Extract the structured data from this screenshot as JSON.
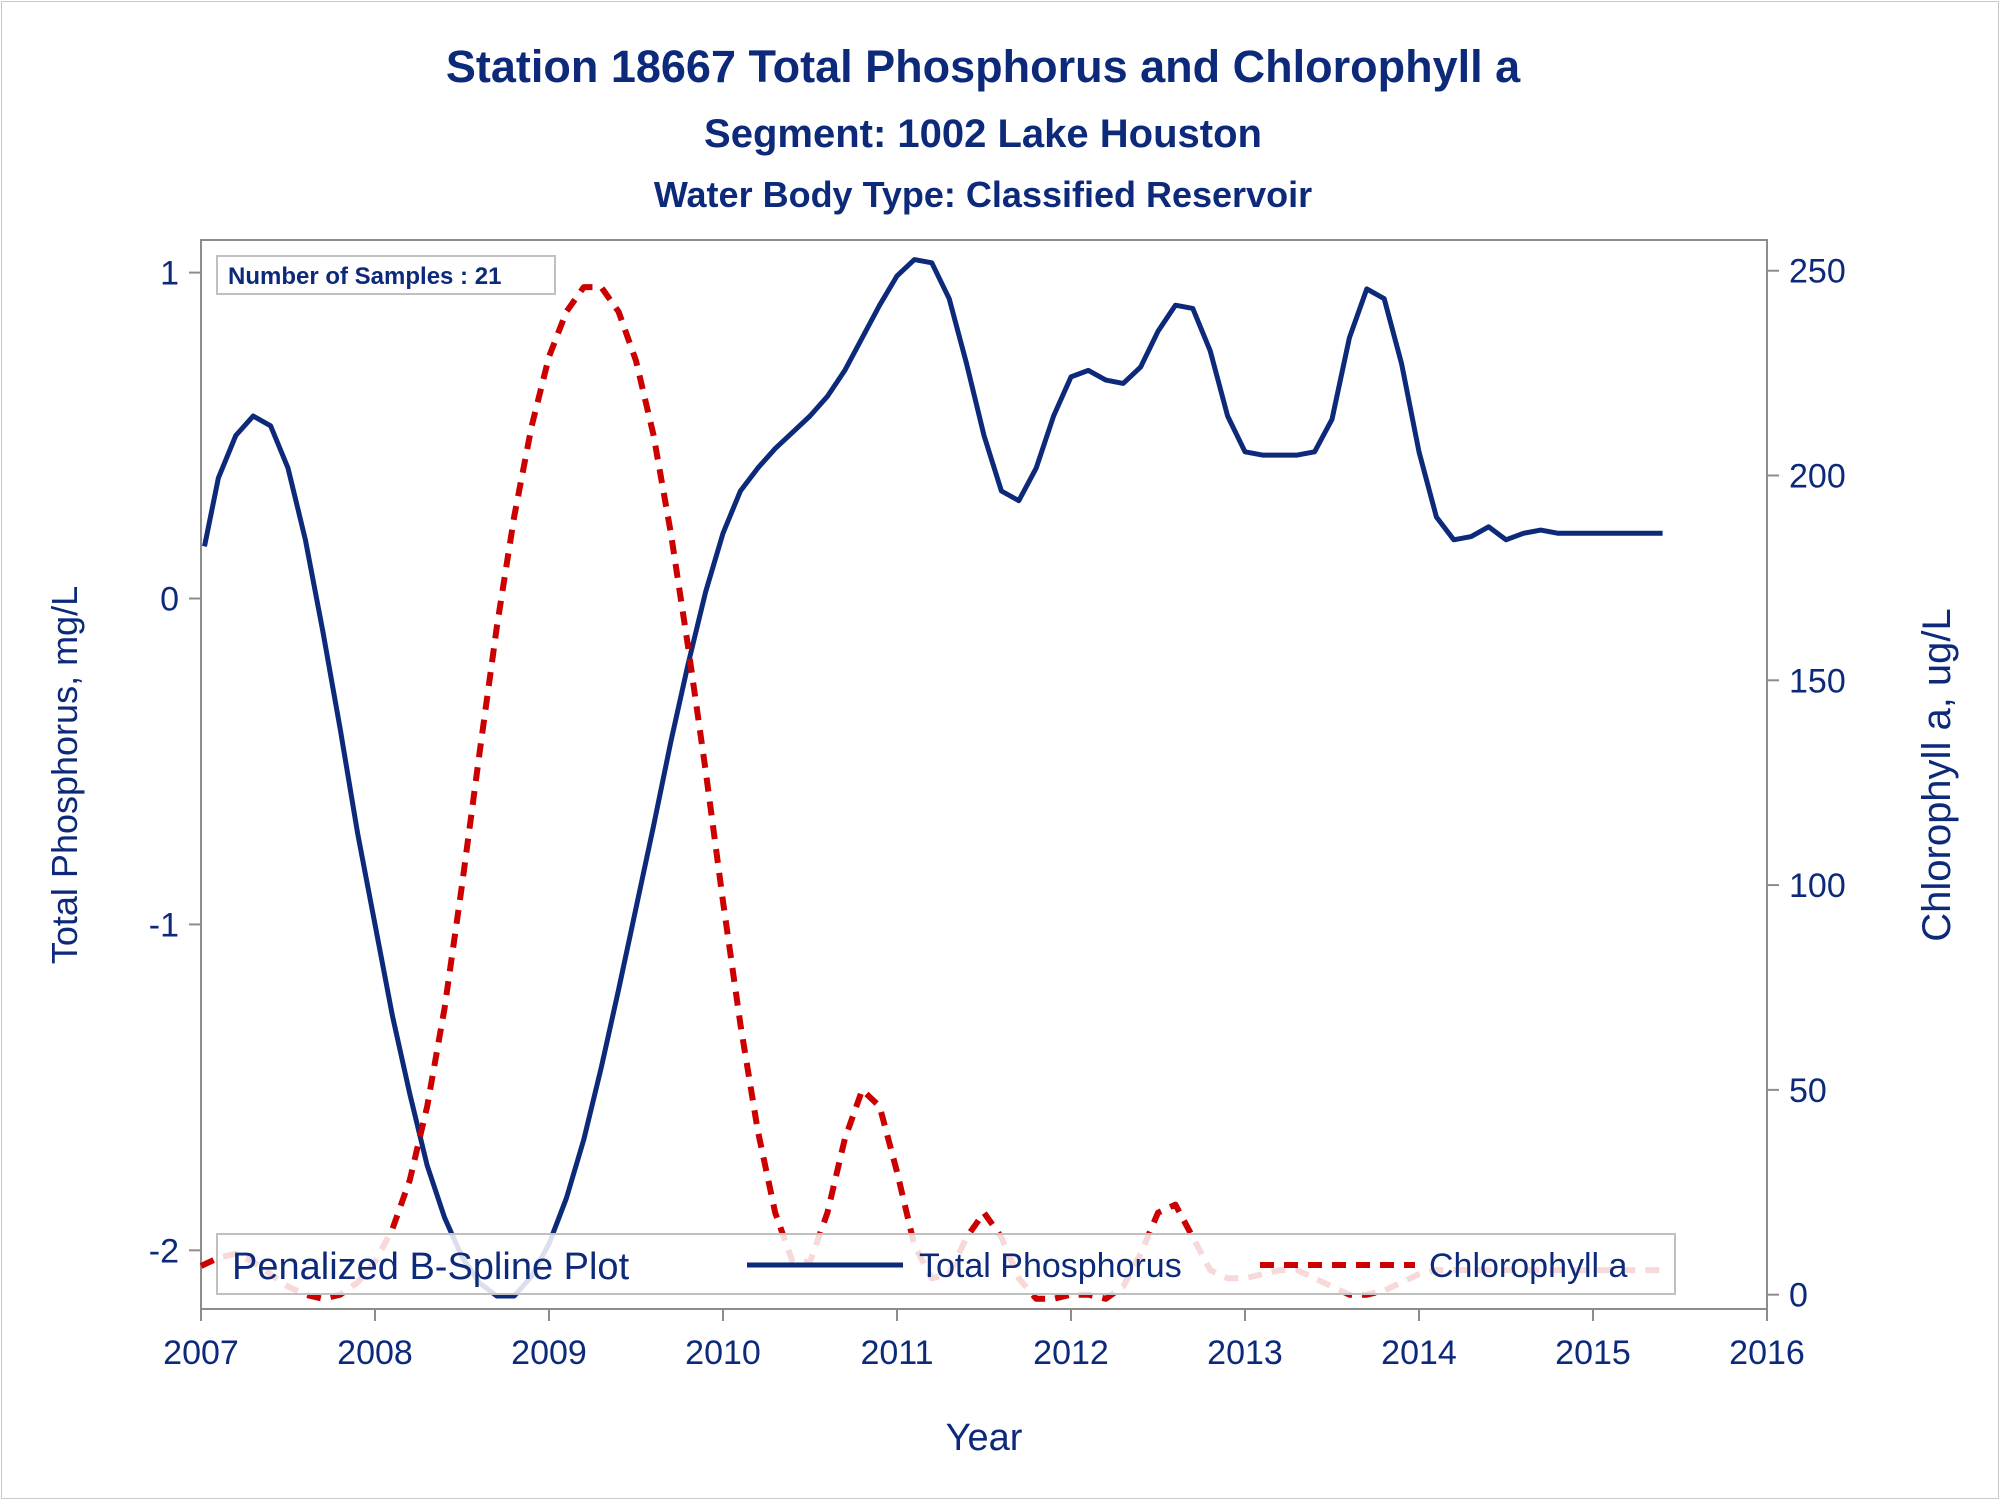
{
  "chart_data": {
    "type": "line",
    "title": "Station 18667  Total Phosphorus and Chlorophyll a",
    "subtitle": "Segment: 1002  Lake Houston",
    "subtitle2": "Water Body Type: Classified Reservoir",
    "xlabel": "Year",
    "ylabel": "Total Phosphorus, mg/L",
    "y2label": "Chlorophyll a, ug/L",
    "xlim": [
      2007,
      2016
    ],
    "ylim": [
      -2.18,
      1.1
    ],
    "y2lim": [
      -3.5,
      257.5
    ],
    "xticks": [
      2007,
      2008,
      2009,
      2010,
      2011,
      2012,
      2013,
      2014,
      2015,
      2016
    ],
    "yticks": [
      -2,
      -1,
      0,
      1
    ],
    "y2ticks": [
      0,
      50,
      100,
      150,
      200,
      250
    ],
    "annotation": "Number of Samples : 21",
    "legend_title": "Penalized B-Spline Plot",
    "legend_position": "bottom-inside",
    "grid": false,
    "series": [
      {
        "name": "Total Phosphorus",
        "axis": "left",
        "color": "#0d2a7a",
        "dash": "solid",
        "x": [
          2007.02,
          2007.1,
          2007.2,
          2007.3,
          2007.4,
          2007.5,
          2007.6,
          2007.7,
          2007.8,
          2007.9,
          2008.0,
          2008.1,
          2008.2,
          2008.3,
          2008.4,
          2008.5,
          2008.6,
          2008.7,
          2008.8,
          2008.9,
          2009.0,
          2009.1,
          2009.2,
          2009.3,
          2009.4,
          2009.5,
          2009.6,
          2009.7,
          2009.8,
          2009.9,
          2010.0,
          2010.1,
          2010.2,
          2010.3,
          2010.4,
          2010.5,
          2010.6,
          2010.7,
          2010.8,
          2010.9,
          2011.0,
          2011.1,
          2011.2,
          2011.3,
          2011.4,
          2011.5,
          2011.6,
          2011.7,
          2011.8,
          2011.9,
          2012.0,
          2012.1,
          2012.2,
          2012.3,
          2012.4,
          2012.5,
          2012.6,
          2012.7,
          2012.8,
          2012.9,
          2013.0,
          2013.1,
          2013.2,
          2013.3,
          2013.4,
          2013.5,
          2013.6,
          2013.7,
          2013.8,
          2013.9,
          2014.0,
          2014.1,
          2014.2,
          2014.3,
          2014.4,
          2014.5,
          2014.6,
          2014.7,
          2014.8,
          2014.9,
          2015.0,
          2015.1,
          2015.2,
          2015.3,
          2015.4
        ],
        "values": [
          0.16,
          0.37,
          0.5,
          0.56,
          0.53,
          0.4,
          0.18,
          -0.1,
          -0.4,
          -0.72,
          -1.0,
          -1.28,
          -1.52,
          -1.74,
          -1.9,
          -2.02,
          -2.1,
          -2.14,
          -2.14,
          -2.08,
          -1.98,
          -1.84,
          -1.66,
          -1.44,
          -1.2,
          -0.95,
          -0.7,
          -0.44,
          -0.2,
          0.02,
          0.2,
          0.33,
          0.4,
          0.46,
          0.51,
          0.56,
          0.62,
          0.7,
          0.8,
          0.9,
          0.99,
          1.04,
          1.03,
          0.92,
          0.72,
          0.5,
          0.33,
          0.3,
          0.4,
          0.56,
          0.68,
          0.7,
          0.67,
          0.66,
          0.71,
          0.82,
          0.9,
          0.89,
          0.76,
          0.56,
          0.45,
          0.44,
          0.44,
          0.44,
          0.45,
          0.55,
          0.8,
          0.95,
          0.92,
          0.72,
          0.45,
          0.25,
          0.18,
          0.19,
          0.22,
          0.18,
          0.2,
          0.21,
          0.2,
          0.2,
          0.2,
          0.2,
          0.2,
          0.2,
          0.2
        ]
      },
      {
        "name": "Chlorophyll a",
        "axis": "right",
        "color": "#cc0000",
        "dash": "dashed",
        "x": [
          2007.0,
          2007.1,
          2007.2,
          2007.3,
          2007.4,
          2007.5,
          2007.6,
          2007.7,
          2007.8,
          2007.9,
          2008.0,
          2008.1,
          2008.2,
          2008.3,
          2008.4,
          2008.5,
          2008.6,
          2008.7,
          2008.8,
          2008.9,
          2009.0,
          2009.1,
          2009.2,
          2009.3,
          2009.4,
          2009.5,
          2009.6,
          2009.7,
          2009.8,
          2009.9,
          2010.0,
          2010.1,
          2010.2,
          2010.3,
          2010.4,
          2010.5,
          2010.6,
          2010.7,
          2010.8,
          2010.9,
          2011.0,
          2011.1,
          2011.2,
          2011.3,
          2011.4,
          2011.5,
          2011.6,
          2011.7,
          2011.8,
          2011.9,
          2012.0,
          2012.1,
          2012.2,
          2012.3,
          2012.4,
          2012.5,
          2012.6,
          2012.7,
          2012.8,
          2012.9,
          2013.0,
          2013.1,
          2013.2,
          2013.3,
          2013.4,
          2013.5,
          2013.6,
          2013.7,
          2013.8,
          2013.9,
          2014.0,
          2014.1,
          2014.2,
          2014.3,
          2014.4,
          2014.5,
          2014.6,
          2014.7,
          2014.8,
          2014.9,
          2015.0,
          2015.1,
          2015.2,
          2015.3,
          2015.4
        ],
        "values": [
          7,
          9,
          10,
          8,
          5,
          2,
          0,
          -1,
          0,
          3,
          8,
          16,
          28,
          46,
          70,
          100,
          132,
          163,
          190,
          212,
          229,
          240,
          246,
          246,
          240,
          228,
          210,
          186,
          158,
          128,
          96,
          66,
          40,
          20,
          8,
          8,
          20,
          38,
          50,
          46,
          30,
          12,
          4,
          5,
          14,
          20,
          14,
          4,
          -1,
          -1,
          0,
          0,
          -1,
          2,
          10,
          20,
          22,
          14,
          6,
          4,
          4,
          5,
          6,
          6,
          4,
          2,
          0,
          0,
          1,
          3,
          5,
          6,
          6,
          6,
          6,
          6,
          6,
          6,
          6,
          6,
          6,
          6,
          6,
          6,
          6
        ]
      }
    ]
  }
}
